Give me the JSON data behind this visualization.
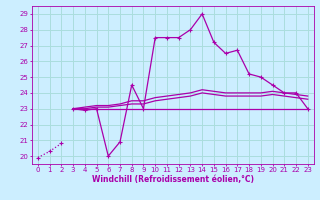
{
  "xlabel": "Windchill (Refroidissement éolien,°C)",
  "xlim": [
    -0.5,
    23.5
  ],
  "ylim": [
    19.5,
    29.5
  ],
  "yticks": [
    20,
    21,
    22,
    23,
    24,
    25,
    26,
    27,
    28,
    29
  ],
  "xticks": [
    0,
    1,
    2,
    3,
    4,
    5,
    6,
    7,
    8,
    9,
    10,
    11,
    12,
    13,
    14,
    15,
    16,
    17,
    18,
    19,
    20,
    21,
    22,
    23
  ],
  "bg_color": "#cceeff",
  "grid_color": "#aadddd",
  "line_color": "#aa00aa",
  "series0_x": [
    0,
    1,
    2
  ],
  "series0_y": [
    19.9,
    20.3,
    20.8
  ],
  "series1_x": [
    3,
    4,
    5,
    6,
    7,
    8,
    9,
    10,
    11,
    12,
    13,
    14,
    15,
    16,
    17,
    18,
    19,
    20,
    21,
    22,
    23
  ],
  "series1_y": [
    23.0,
    22.9,
    23.0,
    20.0,
    20.9,
    24.5,
    23.0,
    27.5,
    27.5,
    27.5,
    28.0,
    29.0,
    27.2,
    26.5,
    26.7,
    25.2,
    25.0,
    24.5,
    24.0,
    24.0,
    23.0
  ],
  "series2_x": [
    3,
    4,
    5,
    6,
    7,
    8,
    9,
    10,
    11,
    12,
    13,
    14,
    15,
    16,
    17,
    18,
    19,
    20,
    21,
    22,
    23
  ],
  "series2_y": [
    23.0,
    23.1,
    23.2,
    23.2,
    23.3,
    23.5,
    23.5,
    23.7,
    23.8,
    23.9,
    24.0,
    24.2,
    24.1,
    24.0,
    24.0,
    24.0,
    24.0,
    24.1,
    24.0,
    23.9,
    23.8
  ],
  "series3_x": [
    3,
    4,
    5,
    6,
    7,
    8,
    9,
    10,
    11,
    12,
    13,
    14,
    15,
    16,
    17,
    18,
    19,
    20,
    21,
    22,
    23
  ],
  "series3_y": [
    23.0,
    23.0,
    23.1,
    23.1,
    23.2,
    23.3,
    23.3,
    23.5,
    23.6,
    23.7,
    23.8,
    24.0,
    23.9,
    23.8,
    23.8,
    23.8,
    23.8,
    23.9,
    23.8,
    23.7,
    23.6
  ],
  "series4_x": [
    3,
    23
  ],
  "series4_y": [
    23.0,
    23.0
  ]
}
